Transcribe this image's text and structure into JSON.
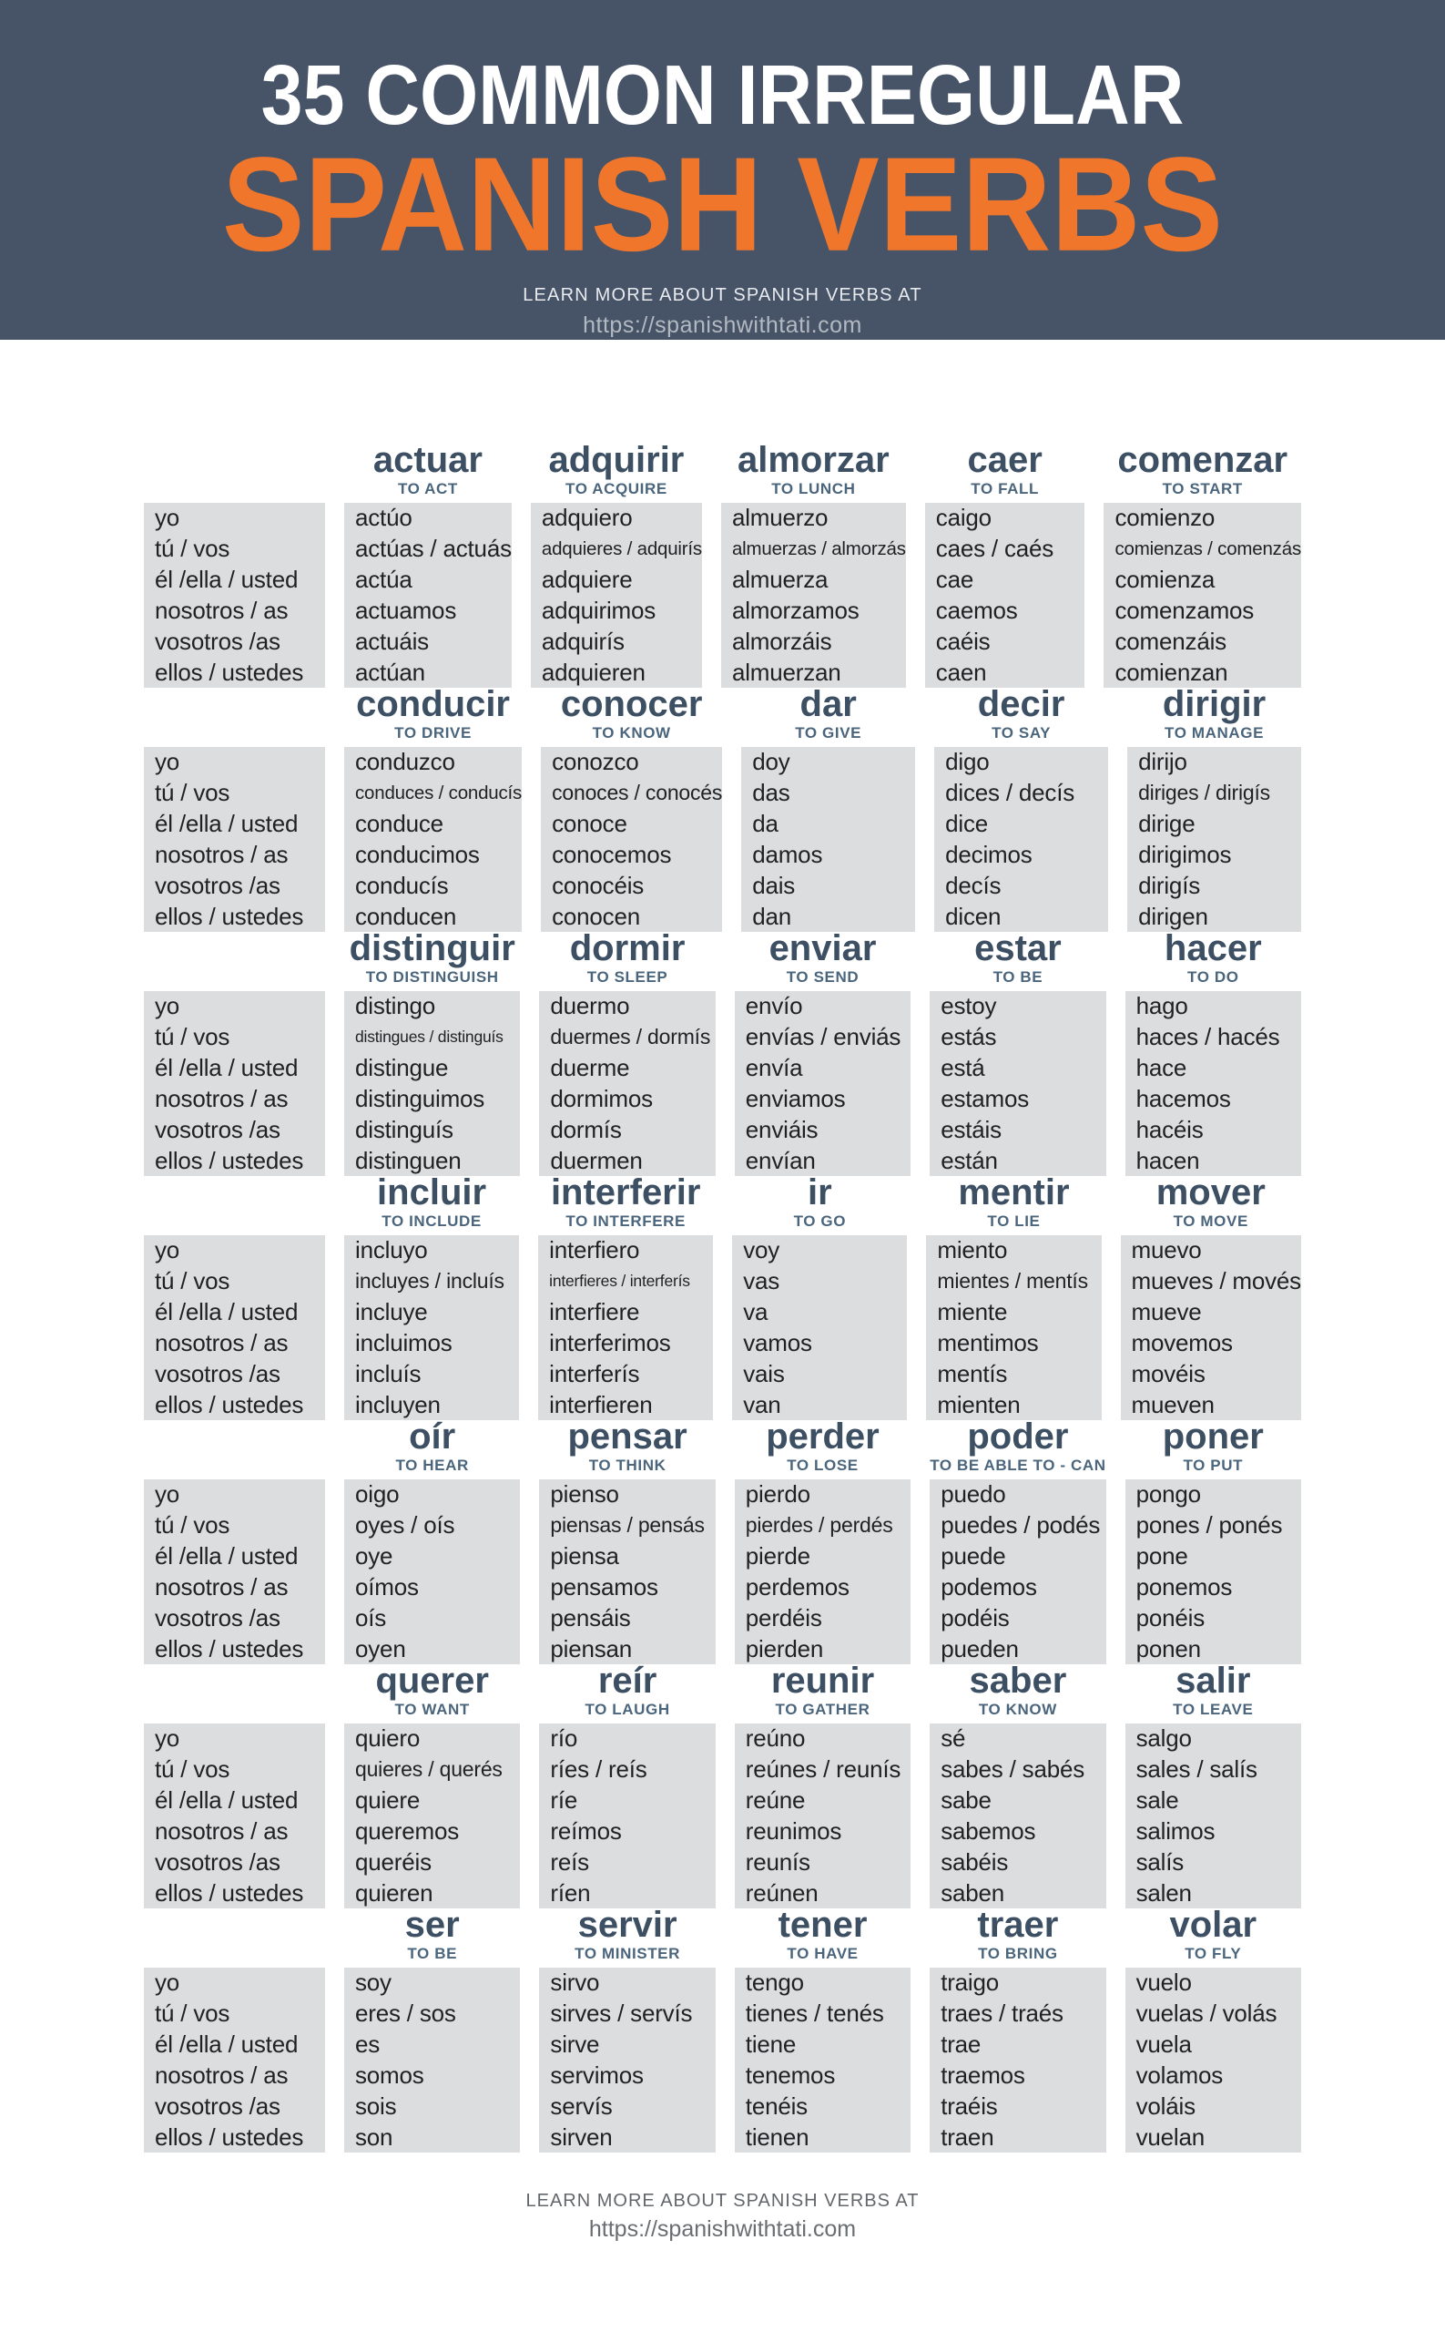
{
  "header": {
    "title_line1": "35 COMMON IRREGULAR",
    "title_line2": "SPANISH VERBS",
    "tagline": "LEARN MORE ABOUT SPANISH VERBS AT",
    "url": "https://spanishwithtati.com"
  },
  "footer": {
    "tagline": "LEARN MORE ABOUT SPANISH VERBS AT",
    "url": "https://spanishwithtati.com"
  },
  "colors": {
    "banner_bg": "#475468",
    "accent_orange": "#F0762C",
    "verb_title": "#3D4F63",
    "english_label": "#4A657C",
    "cell_gray": "#DCDDDF"
  },
  "pronouns": [
    "yo",
    "tú / vos",
    "él /ella / usted",
    "nosotros / as",
    "vosotros /as",
    "ellos / ustedes"
  ],
  "verb_rows": [
    [
      {
        "name": "actuar",
        "english": "TO ACT",
        "forms": [
          "actúo",
          "actúas / actuás",
          "actúa",
          "actuamos",
          "actuáis",
          "actúan"
        ]
      },
      {
        "name": "adquirir",
        "english": "TO ACQUIRE",
        "forms": [
          "adquiero",
          "adquieres / adquirís",
          "adquiere",
          "adquirimos",
          "adquirís",
          "adquieren"
        ]
      },
      {
        "name": "almorzar",
        "english": "TO LUNCH",
        "forms": [
          "almuerzo",
          "almuerzas / almorzás",
          "almuerza",
          "almorzamos",
          "almorzáis",
          "almuerzan"
        ]
      },
      {
        "name": "caer",
        "english": "TO FALL",
        "forms": [
          "caigo",
          "caes / caés",
          "cae",
          "caemos",
          "caéis",
          "caen"
        ]
      },
      {
        "name": "comenzar",
        "english": "TO START",
        "forms": [
          "comienzo",
          "comienzas / comenzás",
          "comienza",
          "comenzamos",
          "comenzáis",
          "comienzan"
        ]
      }
    ],
    [
      {
        "name": "conducir",
        "english": "TO DRIVE",
        "forms": [
          "conduzco",
          "conduces / conducís",
          "conduce",
          "conducimos",
          "conducís",
          "conducen"
        ]
      },
      {
        "name": "conocer",
        "english": "TO KNOW",
        "forms": [
          "conozco",
          "conoces / conocés",
          "conoce",
          "conocemos",
          "conocéis",
          "conocen"
        ]
      },
      {
        "name": "dar",
        "english": "TO GIVE",
        "forms": [
          "doy",
          "das",
          "da",
          "damos",
          "dais",
          "dan"
        ]
      },
      {
        "name": "decir",
        "english": "TO SAY",
        "forms": [
          "digo",
          "dices / decís",
          "dice",
          "decimos",
          "decís",
          "dicen"
        ]
      },
      {
        "name": "dirigir",
        "english": "TO MANAGE",
        "forms": [
          "dirijo",
          "diriges / dirigís",
          "dirige",
          "dirigimos",
          "dirigís",
          "dirigen"
        ]
      }
    ],
    [
      {
        "name": "distinguir",
        "english": "TO DISTINGUISH",
        "forms": [
          "distingo",
          "distingues / distinguís",
          "distingue",
          "distinguimos",
          "distinguís",
          "distinguen"
        ]
      },
      {
        "name": "dormir",
        "english": "TO SLEEP",
        "forms": [
          "duermo",
          "duermes / dormís",
          "duerme",
          "dormimos",
          "dormís",
          "duermen"
        ]
      },
      {
        "name": "enviar",
        "english": "TO SEND",
        "forms": [
          "envío",
          "envías / enviás",
          "envía",
          "enviamos",
          "enviáis",
          "envían"
        ]
      },
      {
        "name": "estar",
        "english": "TO BE",
        "forms": [
          "estoy",
          "estás",
          "está",
          "estamos",
          "estáis",
          "están"
        ]
      },
      {
        "name": "hacer",
        "english": "TO DO",
        "forms": [
          "hago",
          "haces / hacés",
          "hace",
          "hacemos",
          "hacéis",
          "hacen"
        ]
      }
    ],
    [
      {
        "name": "incluir",
        "english": "TO INCLUDE",
        "forms": [
          "incluyo",
          "incluyes / incluís",
          "incluye",
          "incluimos",
          "incluís",
          "incluyen"
        ]
      },
      {
        "name": "interferir",
        "english": "TO INTERFERE",
        "forms": [
          "interfiero",
          "interfieres / interferís",
          "interfiere",
          "interferimos",
          "interferís",
          "interfieren"
        ]
      },
      {
        "name": "ir",
        "english": "TO GO",
        "forms": [
          "voy",
          "vas",
          "va",
          "vamos",
          "vais",
          "van"
        ]
      },
      {
        "name": "mentir",
        "english": "TO LIE",
        "forms": [
          "miento",
          "mientes / mentís",
          "miente",
          "mentimos",
          "mentís",
          "mienten"
        ]
      },
      {
        "name": "mover",
        "english": "TO MOVE",
        "forms": [
          "muevo",
          "mueves / movés",
          "mueve",
          "movemos",
          "movéis",
          "mueven"
        ]
      }
    ],
    [
      {
        "name": "oír",
        "english": "TO HEAR",
        "forms": [
          "oigo",
          "oyes / oís",
          "oye",
          "oímos",
          "oís",
          "oyen"
        ]
      },
      {
        "name": "pensar",
        "english": "TO THINK",
        "forms": [
          "pienso",
          "piensas / pensás",
          "piensa",
          "pensamos",
          "pensáis",
          "piensan"
        ]
      },
      {
        "name": "perder",
        "english": "TO LOSE",
        "forms": [
          "pierdo",
          "pierdes / perdés",
          "pierde",
          "perdemos",
          "perdéis",
          "pierden"
        ]
      },
      {
        "name": "poder",
        "english": "TO BE ABLE TO - CAN",
        "forms": [
          "puedo",
          "puedes / podés",
          "puede",
          "podemos",
          "podéis",
          "pueden"
        ]
      },
      {
        "name": "poner",
        "english": "TO PUT",
        "forms": [
          "pongo",
          "pones / ponés",
          "pone",
          "ponemos",
          "ponéis",
          "ponen"
        ]
      }
    ],
    [
      {
        "name": "querer",
        "english": "TO WANT",
        "forms": [
          "quiero",
          "quieres / querés",
          "quiere",
          "queremos",
          "queréis",
          "quieren"
        ]
      },
      {
        "name": "reír",
        "english": "TO LAUGH",
        "forms": [
          "río",
          "ríes / reís",
          "ríe",
          "reímos",
          "reís",
          "ríen"
        ]
      },
      {
        "name": "reunir",
        "english": "TO GATHER",
        "forms": [
          "reúno",
          "reúnes / reunís",
          "reúne",
          "reunimos",
          "reunís",
          "reúnen"
        ]
      },
      {
        "name": "saber",
        "english": "TO KNOW",
        "forms": [
          "sé",
          "sabes / sabés",
          "sabe",
          "sabemos",
          "sabéis",
          "saben"
        ]
      },
      {
        "name": "salir",
        "english": "TO LEAVE",
        "forms": [
          "salgo",
          "sales / salís",
          "sale",
          "salimos",
          "salís",
          "salen"
        ]
      }
    ],
    [
      {
        "name": "ser",
        "english": "TO BE",
        "forms": [
          "soy",
          "eres / sos",
          "es",
          "somos",
          "sois",
          "son"
        ]
      },
      {
        "name": "servir",
        "english": "TO MINISTER",
        "forms": [
          "sirvo",
          "sirves / servís",
          "sirve",
          "servimos",
          "servís",
          "sirven"
        ]
      },
      {
        "name": "tener",
        "english": "TO HAVE",
        "forms": [
          "tengo",
          "tienes / tenés",
          "tiene",
          "tenemos",
          "tenéis",
          "tienen"
        ]
      },
      {
        "name": "traer",
        "english": "TO BRING",
        "forms": [
          "traigo",
          "traes / traés",
          "trae",
          "traemos",
          "traéis",
          "traen"
        ]
      },
      {
        "name": "volar",
        "english": "TO FLY",
        "forms": [
          "vuelo",
          "vuelas / volás",
          "vuela",
          "volamos",
          "voláis",
          "vuelan"
        ]
      }
    ]
  ]
}
